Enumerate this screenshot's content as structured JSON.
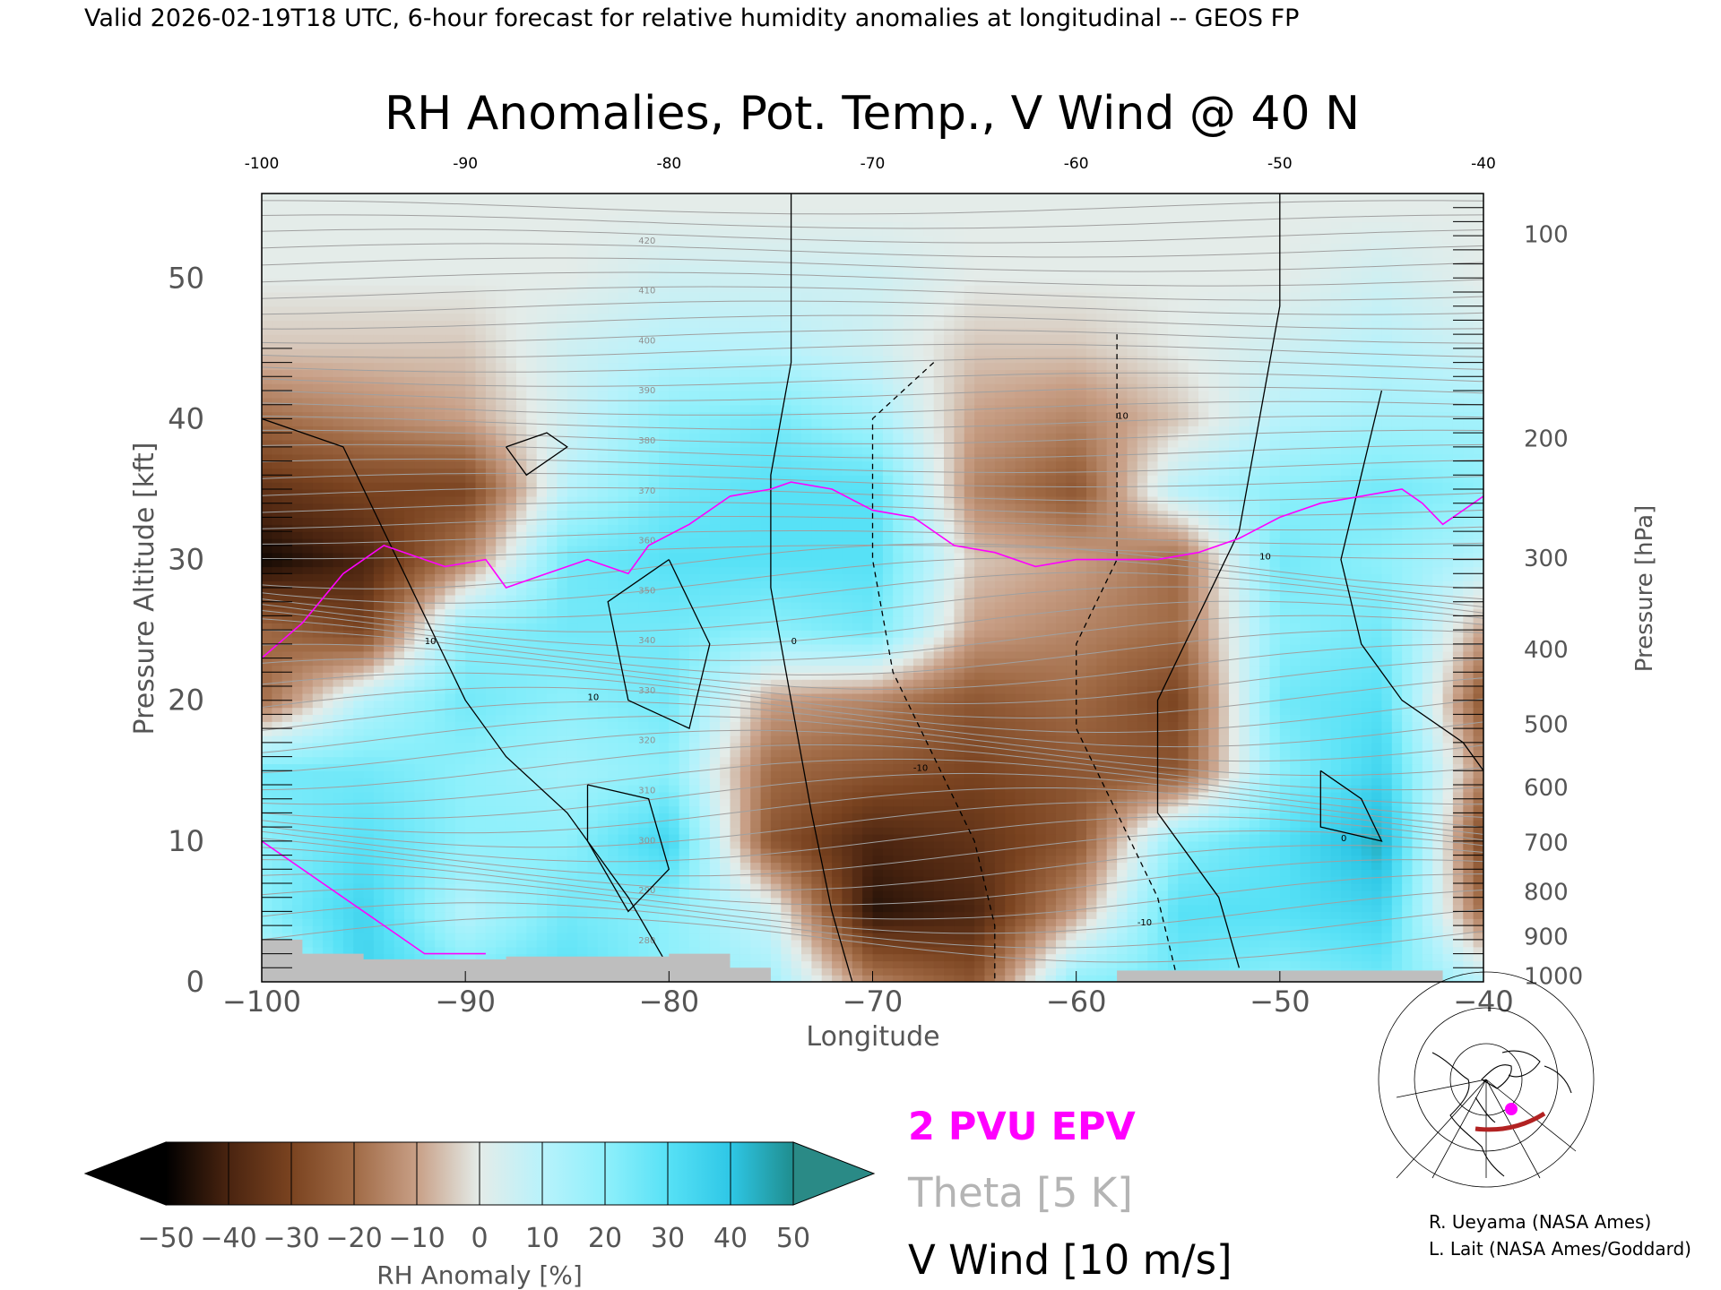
{
  "header": {
    "caption": "Valid 2026-02-19T18 UTC, 6-hour forecast for relative humidity anomalies at longitudinal -- GEOS FP"
  },
  "chart_data": {
    "type": "heatmap",
    "title": "RH Anomalies, Pot. Temp., V Wind @ 40 N",
    "xlabel": "Longitude",
    "ylabel_left": "Pressure Altitude [kft]",
    "ylabel_right": "Pressure [hPa]",
    "xlim": [
      -100,
      -40
    ],
    "ylim": [
      0,
      56
    ],
    "x_ticks_bottom": [
      "−100",
      "−90",
      "−80",
      "−70",
      "−60",
      "−50",
      "−40"
    ],
    "x_ticks_top": [
      "-100",
      "-90",
      "-80",
      "-70",
      "-60",
      "-50",
      "-40"
    ],
    "x_tick_values": [
      -100,
      -90,
      -80,
      -70,
      -60,
      -50,
      -40
    ],
    "y_ticks_left": [
      0,
      10,
      20,
      30,
      40,
      50
    ],
    "pressure_ticks": [
      {
        "label": "100",
        "kft": 53.1
      },
      {
        "label": "200",
        "kft": 38.6
      },
      {
        "label": "300",
        "kft": 30.1
      },
      {
        "label": "400",
        "kft": 23.6
      },
      {
        "label": "500",
        "kft": 18.3
      },
      {
        "label": "600",
        "kft": 13.8
      },
      {
        "label": "700",
        "kft": 9.9
      },
      {
        "label": "800",
        "kft": 6.4
      },
      {
        "label": "900",
        "kft": 3.2
      },
      {
        "label": "1000",
        "kft": 0.4
      }
    ],
    "colors": {
      "epv": "#ff00ff",
      "theta": "#a0a0a0",
      "vwind": "#000000",
      "terrain": "#bebebe"
    },
    "theta_contour_labels": [
      "280",
      "290",
      "300",
      "310",
      "320",
      "330",
      "340",
      "350",
      "360",
      "370",
      "380",
      "390",
      "400",
      "410",
      "420"
    ],
    "vwind_contour_labels": [
      "0",
      "10",
      "-10"
    ],
    "epv_2pvu_line": [
      [
        -100,
        23
      ],
      [
        -98,
        25.5
      ],
      [
        -96,
        29
      ],
      [
        -94,
        31
      ],
      [
        -92,
        30
      ],
      [
        -91,
        29.5
      ],
      [
        -89,
        30
      ],
      [
        -88,
        28
      ],
      [
        -86,
        29
      ],
      [
        -84,
        30
      ],
      [
        -82,
        29
      ],
      [
        -81,
        31
      ],
      [
        -79,
        32.5
      ],
      [
        -77,
        34.5
      ],
      [
        -75,
        35
      ],
      [
        -74,
        35.5
      ],
      [
        -72,
        35
      ],
      [
        -70,
        33.5
      ],
      [
        -68,
        33
      ],
      [
        -66,
        31
      ],
      [
        -64,
        30.5
      ],
      [
        -62,
        29.5
      ],
      [
        -60,
        30
      ],
      [
        -58,
        30
      ],
      [
        -56,
        30
      ],
      [
        -54,
        30.5
      ],
      [
        -52,
        31.5
      ],
      [
        -50,
        33
      ],
      [
        -48,
        34
      ],
      [
        -46,
        34.5
      ],
      [
        -44,
        35
      ],
      [
        -43,
        34
      ],
      [
        -42,
        32.5
      ],
      [
        -41,
        33.5
      ],
      [
        -40,
        34.5
      ]
    ],
    "rh_anomaly_field": {
      "levels_kft": [
        0,
        5,
        10,
        15,
        20,
        25,
        30,
        35,
        40,
        45,
        50,
        55
      ],
      "longitudes": [
        -100,
        -95,
        -90,
        -85,
        -80,
        -75,
        -70,
        -65,
        -60,
        -55,
        -50,
        -45,
        -40
      ],
      "values": [
        [
          5,
          35,
          25,
          30,
          20,
          15,
          -15,
          -25,
          20,
          25,
          20,
          25,
          10
        ],
        [
          20,
          35,
          10,
          25,
          20,
          5,
          -45,
          -40,
          -10,
          30,
          30,
          35,
          -20
        ],
        [
          20,
          30,
          20,
          20,
          35,
          -25,
          -40,
          -35,
          -25,
          20,
          30,
          45,
          -30
        ],
        [
          25,
          25,
          20,
          15,
          20,
          -20,
          -25,
          -30,
          -25,
          -25,
          20,
          35,
          -15
        ],
        [
          -20,
          10,
          25,
          20,
          25,
          -10,
          -15,
          -25,
          -20,
          -30,
          25,
          30,
          -25
        ],
        [
          -20,
          -30,
          20,
          25,
          25,
          20,
          25,
          -10,
          -15,
          -20,
          20,
          25,
          -10
        ],
        [
          -48,
          -40,
          -15,
          25,
          30,
          30,
          30,
          -5,
          -10,
          -20,
          25,
          20,
          10
        ],
        [
          -35,
          -30,
          -30,
          10,
          25,
          30,
          30,
          -15,
          -25,
          10,
          20,
          25,
          20
        ],
        [
          -20,
          -15,
          -10,
          5,
          20,
          25,
          15,
          -10,
          -15,
          -5,
          10,
          15,
          15
        ],
        [
          -5,
          -5,
          -5,
          5,
          10,
          10,
          5,
          -5,
          -5,
          0,
          5,
          10,
          5
        ],
        [
          0,
          0,
          0,
          0,
          5,
          5,
          5,
          0,
          0,
          0,
          0,
          5,
          0
        ],
        [
          0,
          0,
          0,
          0,
          0,
          0,
          0,
          0,
          0,
          0,
          0,
          0,
          0
        ]
      ]
    }
  },
  "colorbar": {
    "label": "RH Anomaly [%]",
    "tick_labels": [
      "−50",
      "−40",
      "−30",
      "−20",
      "−10",
      "0",
      "10",
      "20",
      "30",
      "40",
      "50"
    ],
    "colors": [
      "#a85a22",
      "#9e5a30",
      "#b4764f",
      "#c8977a",
      "#dbb9a6",
      "#e4f2ef",
      "#c0f4fb",
      "#9ff0fa",
      "#75e5f9",
      "#3fd0ec",
      "#16afd2"
    ],
    "under_color": "#000000",
    "over_color": "#2a8a86"
  },
  "legend": {
    "epv": "2 PVU EPV",
    "theta": "Theta [5 K]",
    "vwind": "V Wind [10 m/s]"
  },
  "credits": [
    "R. Ueyama (NASA Ames)",
    "L. Lait (NASA Ames/Goddard)"
  ]
}
